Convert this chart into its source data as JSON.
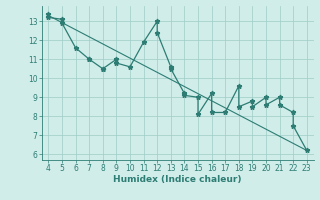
{
  "x_data": [
    4,
    4,
    5,
    5,
    6,
    7,
    7,
    8,
    8,
    9,
    9,
    10,
    11,
    12,
    12,
    13,
    13,
    14,
    14,
    15,
    15,
    16,
    16,
    17,
    18,
    18,
    19,
    19,
    20,
    20,
    21,
    21,
    22,
    22,
    23
  ],
  "y_data": [
    13.4,
    13.2,
    13.1,
    12.9,
    11.6,
    11.0,
    11.0,
    10.5,
    10.5,
    11.0,
    10.8,
    10.6,
    11.9,
    13.0,
    12.4,
    10.6,
    10.5,
    9.2,
    9.1,
    9.0,
    8.1,
    9.2,
    8.2,
    8.2,
    9.6,
    8.5,
    8.8,
    8.5,
    9.0,
    8.6,
    9.0,
    8.6,
    8.2,
    7.5,
    6.2
  ],
  "trend_x": [
    4,
    23
  ],
  "trend_y": [
    13.3,
    6.2
  ],
  "xlim": [
    3.5,
    23.5
  ],
  "ylim": [
    5.7,
    13.8
  ],
  "xticks": [
    4,
    5,
    6,
    7,
    8,
    9,
    10,
    11,
    12,
    13,
    14,
    15,
    16,
    17,
    18,
    19,
    20,
    21,
    22,
    23
  ],
  "yticks": [
    6,
    7,
    8,
    9,
    10,
    11,
    12,
    13
  ],
  "xlabel": "Humidex (Indice chaleur)",
  "line_color": "#2d7d74",
  "trend_color": "#2d7d74",
  "bg_color": "#d0ede9",
  "grid_color": "#9eccc6",
  "axis_color": "#2d7d74",
  "tick_label_color": "#2d7d74",
  "xlabel_color": "#2d7d74",
  "marker": "*",
  "marker_size": 3.5,
  "linewidth": 0.9,
  "trend_linewidth": 0.8,
  "tick_fontsize": 5.5,
  "xlabel_fontsize": 6.5
}
